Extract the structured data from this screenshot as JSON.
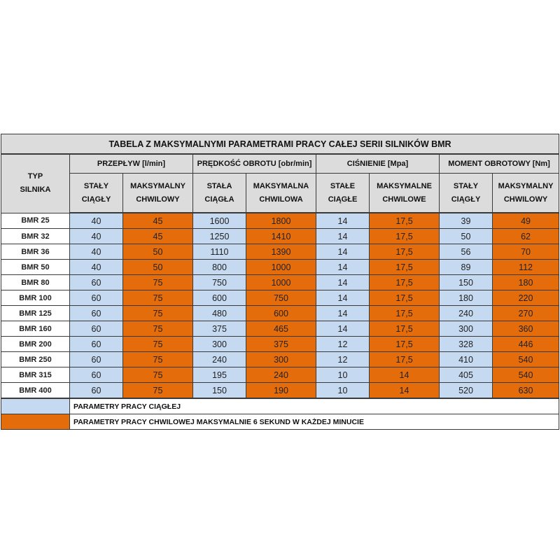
{
  "title": "TABELA Z MAKSYMALNYMI PARAMETRAMI PRACY CAŁEJ SERII SILNIKÓW BMR",
  "typ_header": [
    "TYP",
    "SILNIKA"
  ],
  "groups": [
    {
      "label": "PRZEPŁYW [l/min]",
      "sub": [
        [
          "STAŁY",
          "CIĄGŁY"
        ],
        [
          "MAKSYMALNY",
          "CHWILOWY"
        ]
      ]
    },
    {
      "label": "PRĘDKOŚĆ OBROTU [obr/min]",
      "sub": [
        [
          "STAŁA",
          "CIĄGŁA"
        ],
        [
          "MAKSYMALNA",
          "CHWILOWA"
        ]
      ]
    },
    {
      "label": "CIŚNIENIE [Mpa]",
      "sub": [
        [
          "STAŁE",
          "CIĄGŁE"
        ],
        [
          "MAKSYMALNE",
          "CHWILOWE"
        ]
      ]
    },
    {
      "label": "MOMENT OBROTOWY [Nm]",
      "sub": [
        [
          "STAŁY",
          "CIĄGŁY"
        ],
        [
          "MAKSYMALNY",
          "CHWILOWY"
        ]
      ]
    }
  ],
  "rows": [
    {
      "name": "BMR 25",
      "values": [
        "40",
        "45",
        "1600",
        "1800",
        "14",
        "17,5",
        "39",
        "49"
      ]
    },
    {
      "name": "BMR 32",
      "values": [
        "40",
        "45",
        "1250",
        "1410",
        "14",
        "17,5",
        "50",
        "62"
      ]
    },
    {
      "name": "BMR 36",
      "values": [
        "40",
        "50",
        "1110",
        "1390",
        "14",
        "17,5",
        "56",
        "70"
      ]
    },
    {
      "name": "BMR 50",
      "values": [
        "40",
        "50",
        "800",
        "1000",
        "14",
        "17,5",
        "89",
        "112"
      ]
    },
    {
      "name": "BMR 80",
      "values": [
        "60",
        "75",
        "750",
        "1000",
        "14",
        "17,5",
        "150",
        "180"
      ]
    },
    {
      "name": "BMR 100",
      "values": [
        "60",
        "75",
        "600",
        "750",
        "14",
        "17,5",
        "180",
        "220"
      ]
    },
    {
      "name": "BMR 125",
      "values": [
        "60",
        "75",
        "480",
        "600",
        "14",
        "17,5",
        "240",
        "270"
      ]
    },
    {
      "name": "BMR 160",
      "values": [
        "60",
        "75",
        "375",
        "465",
        "14",
        "17,5",
        "300",
        "360"
      ]
    },
    {
      "name": "BMR 200",
      "values": [
        "60",
        "75",
        "300",
        "375",
        "12",
        "17,5",
        "328",
        "446"
      ]
    },
    {
      "name": "BMR 250",
      "values": [
        "60",
        "75",
        "240",
        "300",
        "12",
        "17,5",
        "410",
        "540"
      ]
    },
    {
      "name": "BMR 315",
      "values": [
        "60",
        "75",
        "195",
        "240",
        "10",
        "14",
        "405",
        "540"
      ]
    },
    {
      "name": "BMR 400",
      "values": [
        "60",
        "75",
        "150",
        "190",
        "10",
        "14",
        "520",
        "630"
      ]
    }
  ],
  "legend": {
    "continuous": "PARAMETRY PRACY CIĄGŁEJ",
    "momentary": "PARAMETRY PRACY CHWILOWEJ MAKSYMALNIE 6 SEKUND W KAŻDEJ MINUCIE"
  },
  "colors": {
    "continuous": "#c5d9f1",
    "momentary": "#e46c0a",
    "header": "#dcdcdc"
  }
}
